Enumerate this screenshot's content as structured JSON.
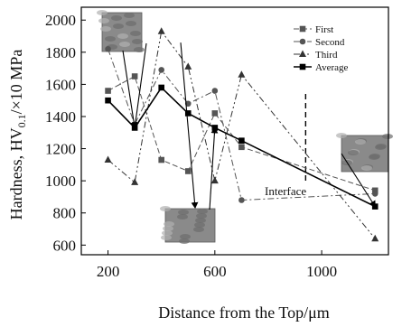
{
  "chart_data": {
    "type": "line",
    "xlabel": "Distance from the Top/μm",
    "ylabel_main": "Hardness, HV",
    "ylabel_sub": "0.1",
    "ylabel_unit": "/×10 MPa",
    "xlim": [
      100,
      1250
    ],
    "ylim": [
      540,
      2080
    ],
    "xticks": [
      200,
      600,
      1000
    ],
    "yticks": [
      600,
      800,
      1000,
      1200,
      1400,
      1600,
      1800,
      2000
    ],
    "x": [
      200,
      300,
      400,
      500,
      600,
      700,
      1200
    ],
    "series": [
      {
        "name": "First",
        "marker": "square",
        "dash": "6,3",
        "width": 1,
        "color": "#555555",
        "values": [
          1560,
          1650,
          1130,
          1060,
          1420,
          1210,
          940
        ]
      },
      {
        "name": "Second",
        "marker": "circle",
        "dash": "7,3,2,3",
        "width": 1,
        "color": "#555555",
        "values": [
          1820,
          1350,
          1690,
          1480,
          1560,
          880,
          920
        ]
      },
      {
        "name": "Third",
        "marker": "triangle",
        "dash": "7,3,2,3,2,3",
        "width": 1,
        "color": "#333333",
        "values": [
          1130,
          990,
          1930,
          1710,
          1000,
          1660,
          640
        ]
      },
      {
        "name": "Average",
        "marker": "square",
        "dash": "",
        "width": 1.6,
        "color": "#000000",
        "values": [
          1500,
          1330,
          1580,
          1420,
          1330,
          1250,
          840
        ]
      }
    ],
    "interface_x": 940,
    "annotations": [
      {
        "text": "Interface"
      }
    ],
    "legend_position": "top-right",
    "grid": false
  }
}
